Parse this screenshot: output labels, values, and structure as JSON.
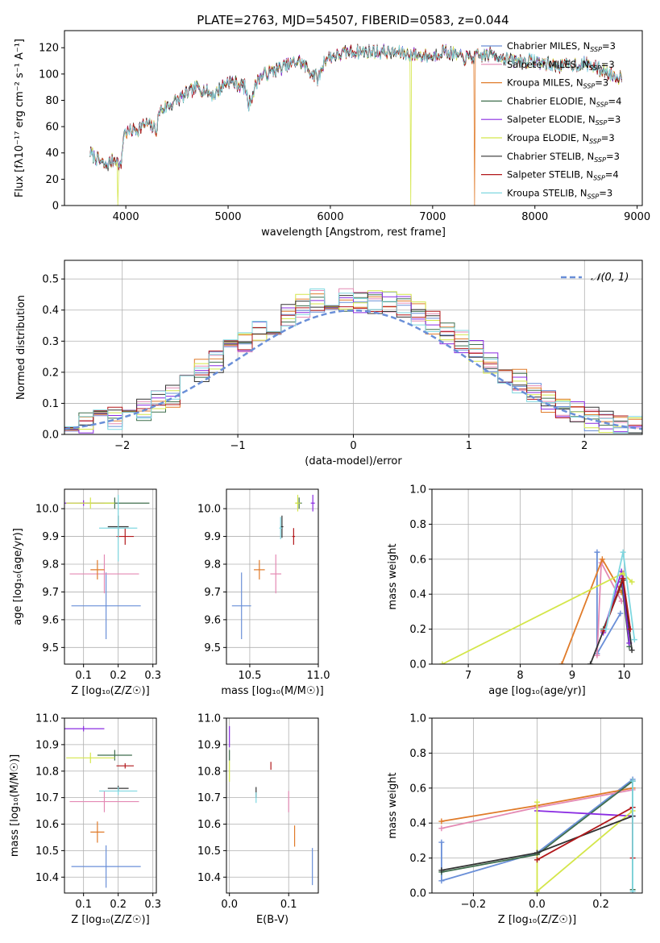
{
  "title": "PLATE=2763, MJD=54507, FIBERID=0583, z=0.044",
  "colors": {
    "Chabrier MILES": "#6a8fd8",
    "Salpeter MILES": "#e48ab4",
    "Kroupa MILES": "#e07b2a",
    "Chabrier ELODIE": "#3f6e4d",
    "Salpeter ELODIE": "#8a2be2",
    "Kroupa ELODIE": "#d4e64a",
    "Chabrier STELIB": "#333333",
    "Salpeter STELIB": "#b2181b",
    "Kroupa STELIB": "#7fd7e0"
  },
  "chart_data": [
    {
      "id": "spectrum",
      "type": "line",
      "title": "PLATE=2763, MJD=54507, FIBERID=0583, z=0.044",
      "xlabel": "wavelength [Angstrom, rest frame]",
      "ylabel": "Flux [fλ10⁻¹⁷ erg cm⁻² s⁻¹ A⁻¹]",
      "xlim": [
        3400,
        9050
      ],
      "ylim": [
        0,
        133
      ],
      "xticks": [
        4000,
        5000,
        6000,
        7000,
        8000,
        9000
      ],
      "yticks": [
        0,
        20,
        40,
        60,
        80,
        100,
        120
      ],
      "legend_position": "top-right",
      "legend": [
        "Chabrier MILES, N_SSP=3",
        "Salpeter MILES, N_SSP=3",
        "Kroupa MILES, N_SSP=3",
        "Chabrier ELODIE, N_SSP=4",
        "Salpeter ELODIE, N_SSP=3",
        "Kroupa ELODIE, N_SSP=3",
        "Chabrier STELIB, N_SSP=3",
        "Salpeter STELIB, N_SSP=4",
        "Kroupa STELIB, N_SSP=3"
      ],
      "continuum": [
        [
          3650,
          40
        ],
        [
          3800,
          30
        ],
        [
          3900,
          36
        ],
        [
          3950,
          28
        ],
        [
          3980,
          55
        ],
        [
          4100,
          58
        ],
        [
          4200,
          62
        ],
        [
          4300,
          58
        ],
        [
          4330,
          72
        ],
        [
          4500,
          80
        ],
        [
          4700,
          90
        ],
        [
          4860,
          84
        ],
        [
          5000,
          95
        ],
        [
          5170,
          90
        ],
        [
          5200,
          76
        ],
        [
          5300,
          98
        ],
        [
          5500,
          104
        ],
        [
          5700,
          110
        ],
        [
          5880,
          96
        ],
        [
          5950,
          112
        ],
        [
          6200,
          117
        ],
        [
          6500,
          117
        ],
        [
          6700,
          116
        ],
        [
          7000,
          113
        ],
        [
          7100,
          118
        ],
        [
          7300,
          112
        ],
        [
          7600,
          115
        ],
        [
          7800,
          110
        ],
        [
          8000,
          110
        ],
        [
          8200,
          106
        ],
        [
          8500,
          108
        ],
        [
          8800,
          98
        ]
      ],
      "dropouts": [
        {
          "series": "Kroupa ELODIE",
          "x": 3920
        },
        {
          "series": "Kroupa ELODIE",
          "x": 6785
        },
        {
          "series": "Kroupa MILES",
          "x": 7410
        }
      ]
    },
    {
      "id": "residuals",
      "type": "step",
      "xlabel": "(data-model)/error",
      "ylabel": "Normed distribution",
      "xlim": [
        -2.5,
        2.5
      ],
      "ylim": [
        0,
        0.56
      ],
      "xticks": [
        -2,
        -1,
        0,
        1,
        2
      ],
      "yticks": [
        0.0,
        0.1,
        0.2,
        0.3,
        0.4,
        0.5
      ],
      "grid": true,
      "legend_position": "top-right",
      "legend": [
        "𝒩(0, 1)"
      ],
      "bin_width": 0.125,
      "bin_start": -2.5,
      "reference_curve": "normal(0,1)"
    },
    {
      "id": "age-vs-Z",
      "type": "errorbar",
      "xlabel": "Z [log₁₀(Z/Z☉)]",
      "ylabel": "age  [log₁₀(age/yr)]",
      "xlim": [
        0.045,
        0.31
      ],
      "ylim": [
        9.44,
        10.07
      ],
      "xticks": [
        0.1,
        0.2,
        0.3
      ],
      "yticks": [
        9.5,
        9.6,
        9.7,
        9.8,
        9.9,
        10.0
      ],
      "grid": true,
      "points": [
        {
          "series": "Chabrier MILES",
          "x": 0.165,
          "xerr": 0.1,
          "y": 9.65,
          "yerr": 0.12
        },
        {
          "series": "Salpeter MILES",
          "x": 0.16,
          "xerr": 0.1,
          "y": 9.765,
          "yerr": 0.07
        },
        {
          "series": "Kroupa MILES",
          "x": 0.14,
          "xerr": 0.02,
          "y": 9.78,
          "yerr": 0.035
        },
        {
          "series": "Chabrier ELODIE",
          "x": 0.19,
          "xerr": 0.1,
          "y": 10.02,
          "yerr": 0.02
        },
        {
          "series": "Salpeter ELODIE",
          "x": 0.1,
          "xerr": 0.06,
          "y": 10.02,
          "yerr": 0.01
        },
        {
          "series": "Kroupa ELODIE",
          "x": 0.12,
          "xerr": 0.07,
          "y": 10.02,
          "yerr": 0.02
        },
        {
          "series": "Chabrier STELIB",
          "x": 0.2,
          "xerr": 0.03,
          "y": 9.935,
          "yerr": 0.04
        },
        {
          "series": "Salpeter STELIB",
          "x": 0.22,
          "xerr": 0.025,
          "y": 9.9,
          "yerr": 0.03
        },
        {
          "series": "Kroupa STELIB",
          "x": 0.2,
          "xerr": 0.055,
          "y": 9.93,
          "yerr": 0.12
        }
      ]
    },
    {
      "id": "age-vs-mass",
      "type": "errorbar",
      "xlabel": "mass [log₁₀(M/M☉)]",
      "ylabel": "",
      "xlim": [
        10.33,
        11.0
      ],
      "ylim": [
        9.44,
        10.07
      ],
      "xticks": [
        10.5,
        11.0
      ],
      "yticks": [
        9.5,
        9.6,
        9.7,
        9.8,
        9.9,
        10.0
      ],
      "grid": true,
      "points": [
        {
          "series": "Chabrier MILES",
          "x": 10.44,
          "xerr": 0.07,
          "y": 9.65,
          "yerr": 0.12
        },
        {
          "series": "Salpeter MILES",
          "x": 10.69,
          "xerr": 0.04,
          "y": 9.765,
          "yerr": 0.07
        },
        {
          "series": "Kroupa MILES",
          "x": 10.57,
          "xerr": 0.04,
          "y": 9.78,
          "yerr": 0.035
        },
        {
          "series": "Chabrier ELODIE",
          "x": 10.86,
          "xerr": 0.02,
          "y": 10.02,
          "yerr": 0.02
        },
        {
          "series": "Salpeter ELODIE",
          "x": 10.96,
          "xerr": 0.015,
          "y": 10.02,
          "yerr": 0.03
        },
        {
          "series": "Kroupa ELODIE",
          "x": 10.85,
          "xerr": 0.02,
          "y": 10.02,
          "yerr": 0.03
        },
        {
          "series": "Chabrier STELIB",
          "x": 10.735,
          "xerr": 0.01,
          "y": 9.935,
          "yerr": 0.04
        },
        {
          "series": "Salpeter STELIB",
          "x": 10.82,
          "xerr": 0.01,
          "y": 9.9,
          "yerr": 0.03
        },
        {
          "series": "Kroupa STELIB",
          "x": 10.725,
          "xerr": 0.01,
          "y": 9.93,
          "yerr": 0.04
        }
      ]
    },
    {
      "id": "weight-vs-age",
      "type": "line",
      "xlabel": "age  [log₁₀(age/yr)]",
      "ylabel": "mass weight",
      "xlim": [
        6.3,
        10.35
      ],
      "ylim": [
        0,
        1.0
      ],
      "xticks": [
        7,
        8,
        9,
        10
      ],
      "yticks": [
        0.0,
        0.2,
        0.4,
        0.6,
        0.8,
        1.0
      ],
      "grid": true,
      "series": [
        {
          "name": "Chabrier MILES",
          "x": [
            9.48,
            9.48,
            9.93
          ],
          "y": [
            0.64,
            0.06,
            0.29
          ]
        },
        {
          "name": "Salpeter MILES",
          "x": [
            9.48,
            9.56,
            9.95
          ],
          "y": [
            0.05,
            0.58,
            0.36
          ]
        },
        {
          "name": "Kroupa MILES",
          "x": [
            8.8,
            9.58,
            9.95
          ],
          "y": [
            0.0,
            0.6,
            0.41
          ]
        },
        {
          "name": "Chabrier ELODIE",
          "x": [
            9.6,
            9.95,
            10.1
          ],
          "y": [
            0.2,
            0.47,
            0.1
          ]
        },
        {
          "name": "Salpeter ELODIE",
          "x": [
            9.6,
            9.95,
            10.1
          ],
          "y": [
            0.18,
            0.53,
            0.12
          ]
        },
        {
          "name": "Kroupa ELODIE",
          "x": [
            6.5,
            9.98,
            10.15
          ],
          "y": [
            0.0,
            0.52,
            0.47
          ]
        },
        {
          "name": "Chabrier STELIB",
          "x": [
            9.35,
            9.98,
            10.15
          ],
          "y": [
            0.0,
            0.48,
            0.08
          ]
        },
        {
          "name": "Salpeter STELIB",
          "x": [
            9.6,
            9.98,
            10.12
          ],
          "y": [
            0.19,
            0.49,
            0.2
          ]
        },
        {
          "name": "Kroupa STELIB",
          "x": [
            9.65,
            9.98,
            10.2
          ],
          "y": [
            0.2,
            0.64,
            0.14
          ]
        }
      ]
    },
    {
      "id": "mass-vs-Z",
      "type": "errorbar",
      "xlabel": "Z [log₁₀(Z/Z☉)]",
      "ylabel": "mass [log₁₀(M/M☉)]",
      "xlim": [
        0.045,
        0.31
      ],
      "ylim": [
        10.34,
        11.0
      ],
      "xticks": [
        0.1,
        0.2,
        0.3
      ],
      "yticks": [
        10.4,
        10.5,
        10.6,
        10.7,
        10.8,
        10.9,
        11.0
      ],
      "grid": true,
      "points": [
        {
          "series": "Chabrier MILES",
          "x": 0.165,
          "xerr": 0.1,
          "y": 10.44,
          "yerr": 0.08
        },
        {
          "series": "Salpeter MILES",
          "x": 0.16,
          "xerr": 0.1,
          "y": 10.685,
          "yerr": 0.04
        },
        {
          "series": "Kroupa MILES",
          "x": 0.14,
          "xerr": 0.02,
          "y": 10.57,
          "yerr": 0.04
        },
        {
          "series": "Chabrier ELODIE",
          "x": 0.19,
          "xerr": 0.05,
          "y": 10.86,
          "yerr": 0.02
        },
        {
          "series": "Salpeter ELODIE",
          "x": 0.1,
          "xerr": 0.06,
          "y": 10.96,
          "yerr": 0.01
        },
        {
          "series": "Kroupa ELODIE",
          "x": 0.12,
          "xerr": 0.07,
          "y": 10.85,
          "yerr": 0.02
        },
        {
          "series": "Chabrier STELIB",
          "x": 0.2,
          "xerr": 0.03,
          "y": 10.735,
          "yerr": 0.01
        },
        {
          "series": "Salpeter STELIB",
          "x": 0.22,
          "xerr": 0.025,
          "y": 10.82,
          "yerr": 0.01
        },
        {
          "series": "Kroupa STELIB",
          "x": 0.2,
          "xerr": 0.055,
          "y": 10.725,
          "yerr": 0.015
        }
      ]
    },
    {
      "id": "mass-vs-ebv",
      "type": "errorbar",
      "xlabel": "E(B-V)",
      "ylabel": "",
      "xlim": [
        -0.005,
        0.15
      ],
      "ylim": [
        10.34,
        11.0
      ],
      "xticks": [
        0.0,
        0.1
      ],
      "yticks": [
        10.4,
        10.5,
        10.6,
        10.7,
        10.8,
        10.9,
        11.0
      ],
      "grid": true,
      "points": [
        {
          "series": "Chabrier MILES",
          "x": 0.14,
          "y": 10.44,
          "yerr": 0.07
        },
        {
          "series": "Salpeter MILES",
          "x": 0.1,
          "y": 10.685,
          "yerr": 0.04
        },
        {
          "series": "Kroupa MILES",
          "x": 0.11,
          "y": 10.555,
          "yerr": 0.04
        },
        {
          "series": "Chabrier ELODIE",
          "x": 0.0,
          "y": 10.86,
          "yerr": 0.02
        },
        {
          "series": "Salpeter ELODIE",
          "x": 0.0,
          "y": 10.93,
          "yerr": 0.04
        },
        {
          "series": "Kroupa ELODIE",
          "x": 0.0,
          "y": 10.8,
          "yerr": 0.04
        },
        {
          "series": "Chabrier STELIB",
          "x": 0.045,
          "y": 10.72,
          "yerr": 0.02
        },
        {
          "series": "Salpeter STELIB",
          "x": 0.07,
          "y": 10.82,
          "yerr": 0.015
        },
        {
          "series": "Kroupa STELIB",
          "x": 0.045,
          "y": 10.7,
          "yerr": 0.02
        }
      ]
    },
    {
      "id": "weight-vs-Z",
      "type": "line",
      "xlabel": "Z [log₁₀(Z/Z☉)]",
      "ylabel": "mass weight",
      "xlim": [
        -0.33,
        0.33
      ],
      "ylim": [
        0,
        1.0
      ],
      "xticks": [
        -0.2,
        0.0,
        0.2
      ],
      "yticks": [
        0.0,
        0.2,
        0.4,
        0.6,
        0.8,
        1.0
      ],
      "grid": true,
      "series": [
        {
          "name": "Chabrier MILES",
          "x": [
            -0.3,
            -0.3,
            0.0,
            0.3
          ],
          "y": [
            0.29,
            0.07,
            0.23,
            0.65
          ]
        },
        {
          "name": "Salpeter MILES",
          "x": [
            -0.3,
            0.0,
            0.3
          ],
          "y": [
            0.37,
            0.49,
            0.59
          ]
        },
        {
          "name": "Kroupa MILES",
          "x": [
            -0.3,
            0.0,
            0.3
          ],
          "y": [
            0.41,
            0.5,
            0.6
          ]
        },
        {
          "name": "Chabrier ELODIE",
          "x": [
            -0.3,
            0.0,
            0.3,
            0.3
          ],
          "y": [
            0.12,
            0.22,
            0.64,
            0.02
          ]
        },
        {
          "name": "Salpeter ELODIE",
          "x": [
            0.0,
            0.3
          ],
          "y": [
            0.47,
            0.44
          ]
        },
        {
          "name": "Kroupa ELODIE",
          "x": [
            0.0,
            0.0,
            0.3
          ],
          "y": [
            0.52,
            0.01,
            0.47
          ]
        },
        {
          "name": "Chabrier STELIB",
          "x": [
            -0.3,
            0.0,
            0.3
          ],
          "y": [
            0.13,
            0.23,
            0.44
          ]
        },
        {
          "name": "Salpeter STELIB",
          "x": [
            0.0,
            0.3,
            0.3
          ],
          "y": [
            0.19,
            0.49,
            0.2
          ]
        },
        {
          "name": "Kroupa STELIB",
          "x": [
            0.3,
            0.3
          ],
          "y": [
            0.64,
            0.01
          ]
        }
      ]
    }
  ]
}
